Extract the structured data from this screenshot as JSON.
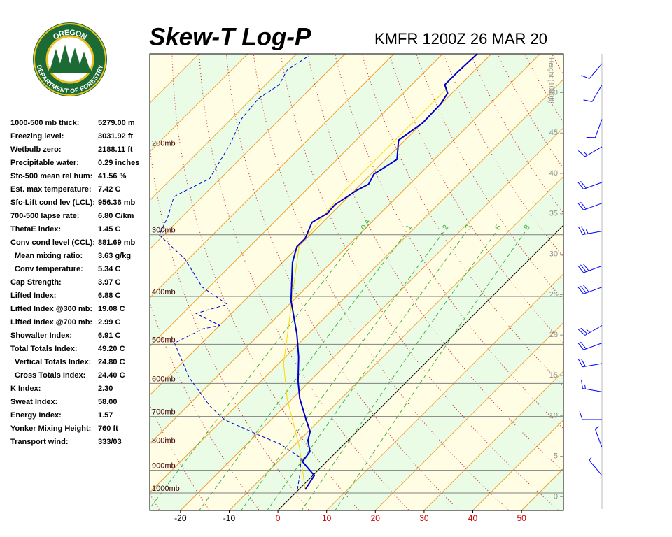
{
  "header": {
    "title": "Skew-T Log-P",
    "subtitle": "KMFR 1200Z 26 MAR 20",
    "logo_top": "OREGON",
    "logo_bottom": "DEPARTMENT OF FORESTRY"
  },
  "indices": [
    {
      "label": "1000-500 mb thick:",
      "value": "5279.00 m"
    },
    {
      "label": "Freezing level:",
      "value": "3031.92 ft"
    },
    {
      "label": "Wetbulb zero:",
      "value": "2188.11 ft"
    },
    {
      "label": "Precipitable water:",
      "value": "0.29 inches"
    },
    {
      "label": "Sfc-500 mean rel hum:",
      "value": "41.56 %"
    },
    {
      "label": "Est. max temperature:",
      "value": "7.42 C"
    },
    {
      "label": "Sfc-Lift cond lev (LCL):",
      "value": "956.36 mb"
    },
    {
      "label": "700-500 lapse rate:",
      "value": "6.80 C/km"
    },
    {
      "label": "ThetaE index:",
      "value": "1.45 C"
    },
    {
      "label": "Conv cond level (CCL):",
      "value": "881.69 mb"
    },
    {
      "label": "Mean mixing ratio:",
      "value": "3.63 g/kg",
      "indent": true
    },
    {
      "label": "Conv temperature:",
      "value": "5.34 C",
      "indent": true
    },
    {
      "label": "Cap Strength:",
      "value": "3.97 C"
    },
    {
      "label": "Lifted Index:",
      "value": "6.88 C"
    },
    {
      "label": "Lifted Index @300 mb:",
      "value": "19.08 C"
    },
    {
      "label": "Lifted Index @700 mb:",
      "value": "2.99 C"
    },
    {
      "label": "Showalter Index:",
      "value": "6.91 C"
    },
    {
      "label": "Total Totals Index:",
      "value": "49.20 C"
    },
    {
      "label": "Vertical Totals Index:",
      "value": "24.80 C",
      "indent": true
    },
    {
      "label": "Cross Totals Index:",
      "value": "24.40 C",
      "indent": true
    },
    {
      "label": "K Index:",
      "value": "2.30"
    },
    {
      "label": "Sweat Index:",
      "value": "58.00"
    },
    {
      "label": "Energy Index:",
      "value": "1.57"
    },
    {
      "label": "Yonker Mixing Height:",
      "value": "760 ft"
    },
    {
      "label": "Transport wind:",
      "value": "333/03"
    }
  ],
  "chart_data": {
    "type": "skew-t",
    "xlim": [
      -26.3,
      58.6
    ],
    "xticks": [
      -20,
      -10,
      0,
      10,
      20,
      30,
      40,
      50
    ],
    "negative_tick_color": "#000000",
    "tick_color": "#cc0000",
    "log_y": true,
    "ylim": [
      1085,
      129
    ],
    "yticks": [
      {
        "value": 200,
        "label": "200mb"
      },
      {
        "value": 300,
        "label": "300mb"
      },
      {
        "value": 400,
        "label": "400mb"
      },
      {
        "value": 500,
        "label": "500mb"
      },
      {
        "value": 600,
        "label": "600mb"
      },
      {
        "value": 700,
        "label": "700mb"
      },
      {
        "value": 800,
        "label": "800mb"
      },
      {
        "value": 900,
        "label": "900mb"
      },
      {
        "value": 1000,
        "label": "1000mb"
      }
    ],
    "y2_label": "Height (1000ft)",
    "y2lim": [
      -1.7,
      54.8
    ],
    "y2ticks": [
      0,
      5,
      10,
      15,
      20,
      25,
      30,
      35,
      40,
      45,
      50
    ],
    "isotherms": [
      -120,
      -110,
      -100,
      -90,
      -80,
      -70,
      -60,
      -50,
      -40,
      -30,
      -20,
      -10,
      0,
      10,
      20,
      30,
      40,
      50
    ],
    "isotherm_color": "#f0a030",
    "zero_isotherm_color": "#000000",
    "band_colors": [
      "#fffde4",
      "#eafbe6"
    ],
    "dry_adiabats": [
      -30,
      -20,
      -10,
      0,
      10,
      20,
      30,
      40,
      50,
      60,
      70,
      80,
      90,
      100,
      110,
      120,
      130,
      140,
      150
    ],
    "dry_adiabat_color": "#cc2020",
    "mixing_ratio_lines": [
      0.4,
      1,
      2,
      3,
      5,
      8
    ],
    "mixing_ratio_color": "#40b040",
    "series": [
      {
        "color": "#ffd700",
        "style": "solid",
        "width": 1,
        "pressure": [
          984,
          809,
          644,
          547,
          465,
          395,
          315,
          246,
          152
        ],
        "values": [
          1.3,
          -8.5,
          -21.1,
          -29.0,
          -35.2,
          -41.5,
          -50.1,
          -52.0,
          -52.0
        ]
      },
      {
        "color": "#0000cc",
        "style": "dashed",
        "width": 1,
        "pressure": [
          984,
          922,
          850,
          796,
          758,
          710,
          666,
          584,
          497,
          465,
          458,
          433,
          415,
          383,
          336,
          300,
          276,
          251,
          231,
          196,
          175,
          159,
          149,
          139,
          131
        ],
        "values": [
          -0.3,
          -2.7,
          -6.0,
          -13.2,
          -20.4,
          -29.7,
          -35.5,
          -45.5,
          -55.6,
          -52.7,
          -49.9,
          -57.3,
          -52.7,
          -61.4,
          -70.7,
          -81.0,
          -82.9,
          -85.8,
          -82.2,
          -85.1,
          -87.9,
          -88.6,
          -87.2,
          -88.6,
          -87.2
        ]
      },
      {
        "color": "#0000cc",
        "style": "solid",
        "width": 2,
        "pressure": [
          984,
          922,
          864,
          825,
          783,
          751,
          710,
          644,
          594,
          530,
          477,
          408,
          341,
          317,
          305,
          283,
          272,
          261,
          244,
          237,
          226,
          220,
          211,
          193,
          178,
          163,
          155,
          149,
          140,
          129
        ],
        "values": [
          1.3,
          0.3,
          -5.0,
          -5.5,
          -8.2,
          -9.6,
          -12.9,
          -18.5,
          -22.4,
          -27.3,
          -32.3,
          -40.4,
          -48.0,
          -50.3,
          -50.3,
          -52.2,
          -50.9,
          -51.1,
          -49.6,
          -48.4,
          -49.4,
          -48.7,
          -47.7,
          -51.3,
          -49.9,
          -50.1,
          -50.9,
          -53.2,
          -53.2,
          -52.9
        ]
      }
    ],
    "winds": {
      "color": "#0000ff",
      "pressure": [
        922,
        809,
        710,
        624,
        547,
        497,
        458,
        383,
        347,
        295,
        259,
        235,
        199,
        175,
        149,
        135
      ],
      "direction": [
        320,
        340,
        270,
        280,
        260,
        250,
        240,
        250,
        250,
        260,
        250,
        250,
        240,
        200,
        210,
        220
      ],
      "speed": [
        5,
        5,
        10,
        15,
        20,
        20,
        25,
        30,
        30,
        25,
        20,
        20,
        15,
        10,
        10,
        10
      ]
    }
  }
}
